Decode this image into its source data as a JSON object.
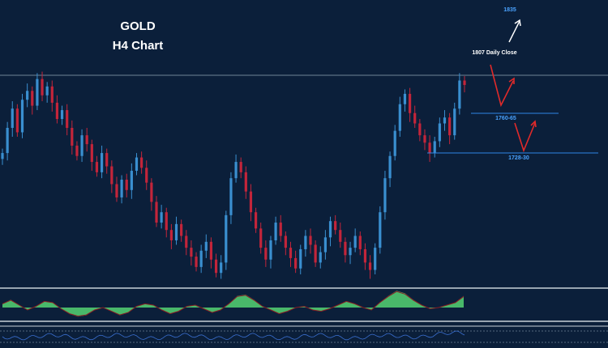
{
  "chart_data": {
    "type": "candlestick",
    "title": "GOLD",
    "subtitle": "H4 Chart",
    "series": [
      {
        "name": "",
        "close": [
          1758,
          1775,
          1788,
          1772,
          1794,
          1800,
          1790,
          1808,
          1797,
          1803,
          1792,
          1781,
          1787,
          1775,
          1763,
          1756,
          1770,
          1764,
          1752,
          1745,
          1758,
          1749,
          1737,
          1728,
          1740,
          1733,
          1746,
          1755,
          1748,
          1738,
          1725,
          1711,
          1718,
          1706,
          1699,
          1710,
          1702,
          1694,
          1688,
          1681,
          1692,
          1698,
          1686,
          1677,
          1684,
          1716,
          1741,
          1752,
          1745,
          1732,
          1718,
          1707,
          1694,
          1686,
          1699,
          1711,
          1702,
          1694,
          1687,
          1680,
          1693,
          1702,
          1696,
          1684,
          1691,
          1701,
          1712,
          1706,
          1698,
          1689,
          1694,
          1702,
          1693,
          1684,
          1679,
          1694,
          1718,
          1741,
          1756,
          1773,
          1791,
          1798,
          1785,
          1778,
          1770,
          1765,
          1758,
          1766,
          1778,
          1782,
          1770,
          1788,
          1807,
          1804
        ]
      }
    ],
    "xlabel": "",
    "ylabel": "",
    "ylim": [
      1670,
      1845
    ],
    "grid": false,
    "levels": [
      {
        "label": "1807 Daily Close",
        "value": 1807
      },
      {
        "label": "1760-65",
        "value": 1764
      },
      {
        "label": "1728-30",
        "value": 1729
      }
    ],
    "target": {
      "label": "1835",
      "value": 1835
    },
    "oscillator": [
      0.3,
      0.6,
      0.2,
      -0.2,
      0.1,
      0.5,
      0.4,
      -0.1,
      -0.5,
      -0.7,
      -0.6,
      -0.2,
      0.0,
      -0.3,
      -0.6,
      -0.4,
      0.1,
      0.3,
      0.2,
      -0.2,
      -0.5,
      -0.3,
      0.1,
      0.2,
      -0.1,
      -0.4,
      -0.2,
      0.3,
      0.9,
      1.0,
      0.6,
      0.1,
      -0.2,
      -0.5,
      -0.3,
      0.0,
      0.1,
      -0.2,
      -0.3,
      -0.1,
      0.2,
      0.5,
      0.3,
      0.0,
      -0.2,
      0.4,
      0.9,
      1.3,
      1.1,
      0.6,
      0.2,
      -0.1,
      0.0,
      0.2,
      0.4,
      0.9
    ],
    "colors": {
      "background": "#0b1f3a",
      "up": "#3a8fd0",
      "down": "#c3253a",
      "level_line": "#2f86e6",
      "level_text": "#4aa3ff",
      "arrow_red": "#e02a2a",
      "arrow_white": "#ffffff",
      "resistance_line": "#6f8497",
      "osc_fill": "#49b86a",
      "osc_line": "#8a1a22",
      "panel_line": "#c8d0d8",
      "lower_line": "#3a6fd0"
    }
  }
}
